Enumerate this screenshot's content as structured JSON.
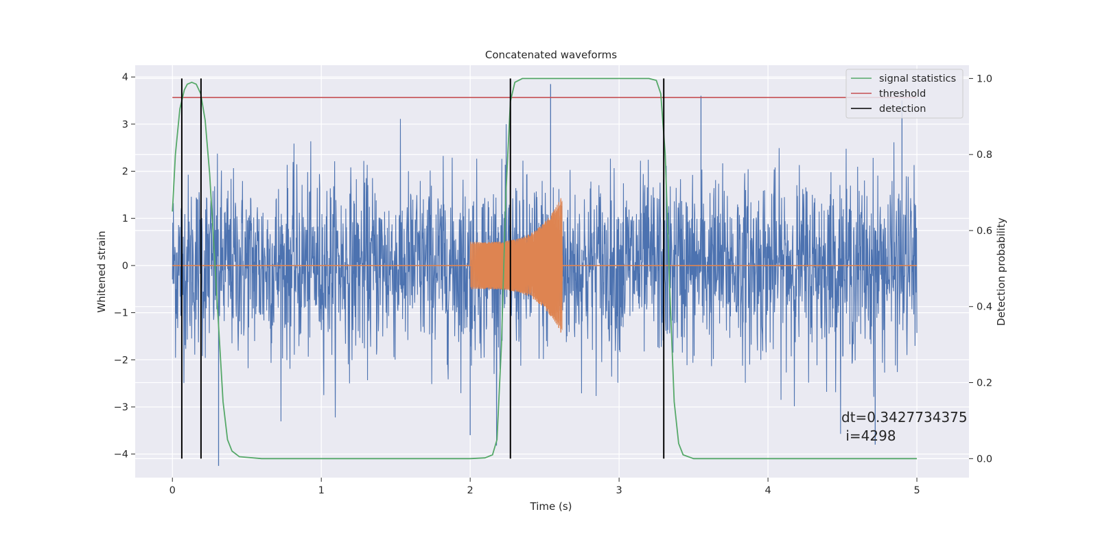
{
  "chart_data": {
    "type": "line",
    "title": "Concatenated waveforms",
    "xlabel": "Time (s)",
    "ylabel_left": "Whitened strain",
    "ylabel_right": "Detection probability",
    "xlim": [
      -0.25,
      5.35
    ],
    "ylim_left": [
      -4.5,
      4.25
    ],
    "ylim_right": [
      -0.05,
      1.035
    ],
    "x_ticks": [
      0,
      1,
      2,
      3,
      4,
      5
    ],
    "y_left_ticks": [
      4,
      3,
      2,
      1,
      0,
      -1,
      -2,
      -3,
      -4
    ],
    "y_right_ticks": [
      1.0,
      0.8,
      0.6,
      0.4,
      0.2,
      0.0
    ],
    "grid": true,
    "legend_position": "top-right",
    "series": [
      {
        "name": "",
        "axis": "left",
        "color": "#4c72b0",
        "kind": "noise",
        "x_range": [
          0,
          5
        ],
        "typical_amplitude": 1.0,
        "peak_max": 3.85,
        "peak_min": -4.25
      },
      {
        "name": "",
        "axis": "left",
        "color": "#dd8452",
        "kind": "chirp",
        "x_start": 2.0,
        "x_end": 2.62,
        "amplitude_start": 0.5,
        "amplitude_end": 1.5
      },
      {
        "name": "signal statistics",
        "axis": "right",
        "color": "#55a868",
        "x": [
          0,
          0.02,
          0.05,
          0.08,
          0.1,
          0.13,
          0.16,
          0.19,
          0.22,
          0.25,
          0.28,
          0.31,
          0.34,
          0.37,
          0.4,
          0.45,
          0.6,
          1.0,
          1.5,
          2.0,
          2.1,
          2.15,
          2.18,
          2.21,
          2.24,
          2.27,
          2.3,
          2.35,
          2.5,
          3.0,
          3.2,
          3.25,
          3.28,
          3.31,
          3.34,
          3.37,
          3.4,
          3.43,
          3.5,
          4.0,
          4.5,
          5.0
        ],
        "y": [
          0.65,
          0.8,
          0.92,
          0.97,
          0.985,
          0.99,
          0.985,
          0.96,
          0.89,
          0.75,
          0.55,
          0.35,
          0.15,
          0.05,
          0.02,
          0.005,
          0.0,
          0.0,
          0.0,
          0.0,
          0.002,
          0.01,
          0.05,
          0.3,
          0.7,
          0.94,
          0.99,
          1.0,
          1.0,
          1.0,
          1.0,
          0.995,
          0.96,
          0.8,
          0.45,
          0.15,
          0.04,
          0.01,
          0.0,
          0.0,
          0.0,
          0.0
        ]
      },
      {
        "name": "threshold",
        "axis": "right",
        "color": "#c44e52",
        "x": [
          0,
          5
        ],
        "y": [
          0.95,
          0.95
        ]
      },
      {
        "name": "detection",
        "axis": "right",
        "color": "#000000",
        "kind": "vlines",
        "x": [
          0.063,
          0.192,
          2.27,
          3.3
        ]
      }
    ],
    "annotation": {
      "line1": "dt=0.3427734375",
      "line2": " i=4298"
    }
  }
}
